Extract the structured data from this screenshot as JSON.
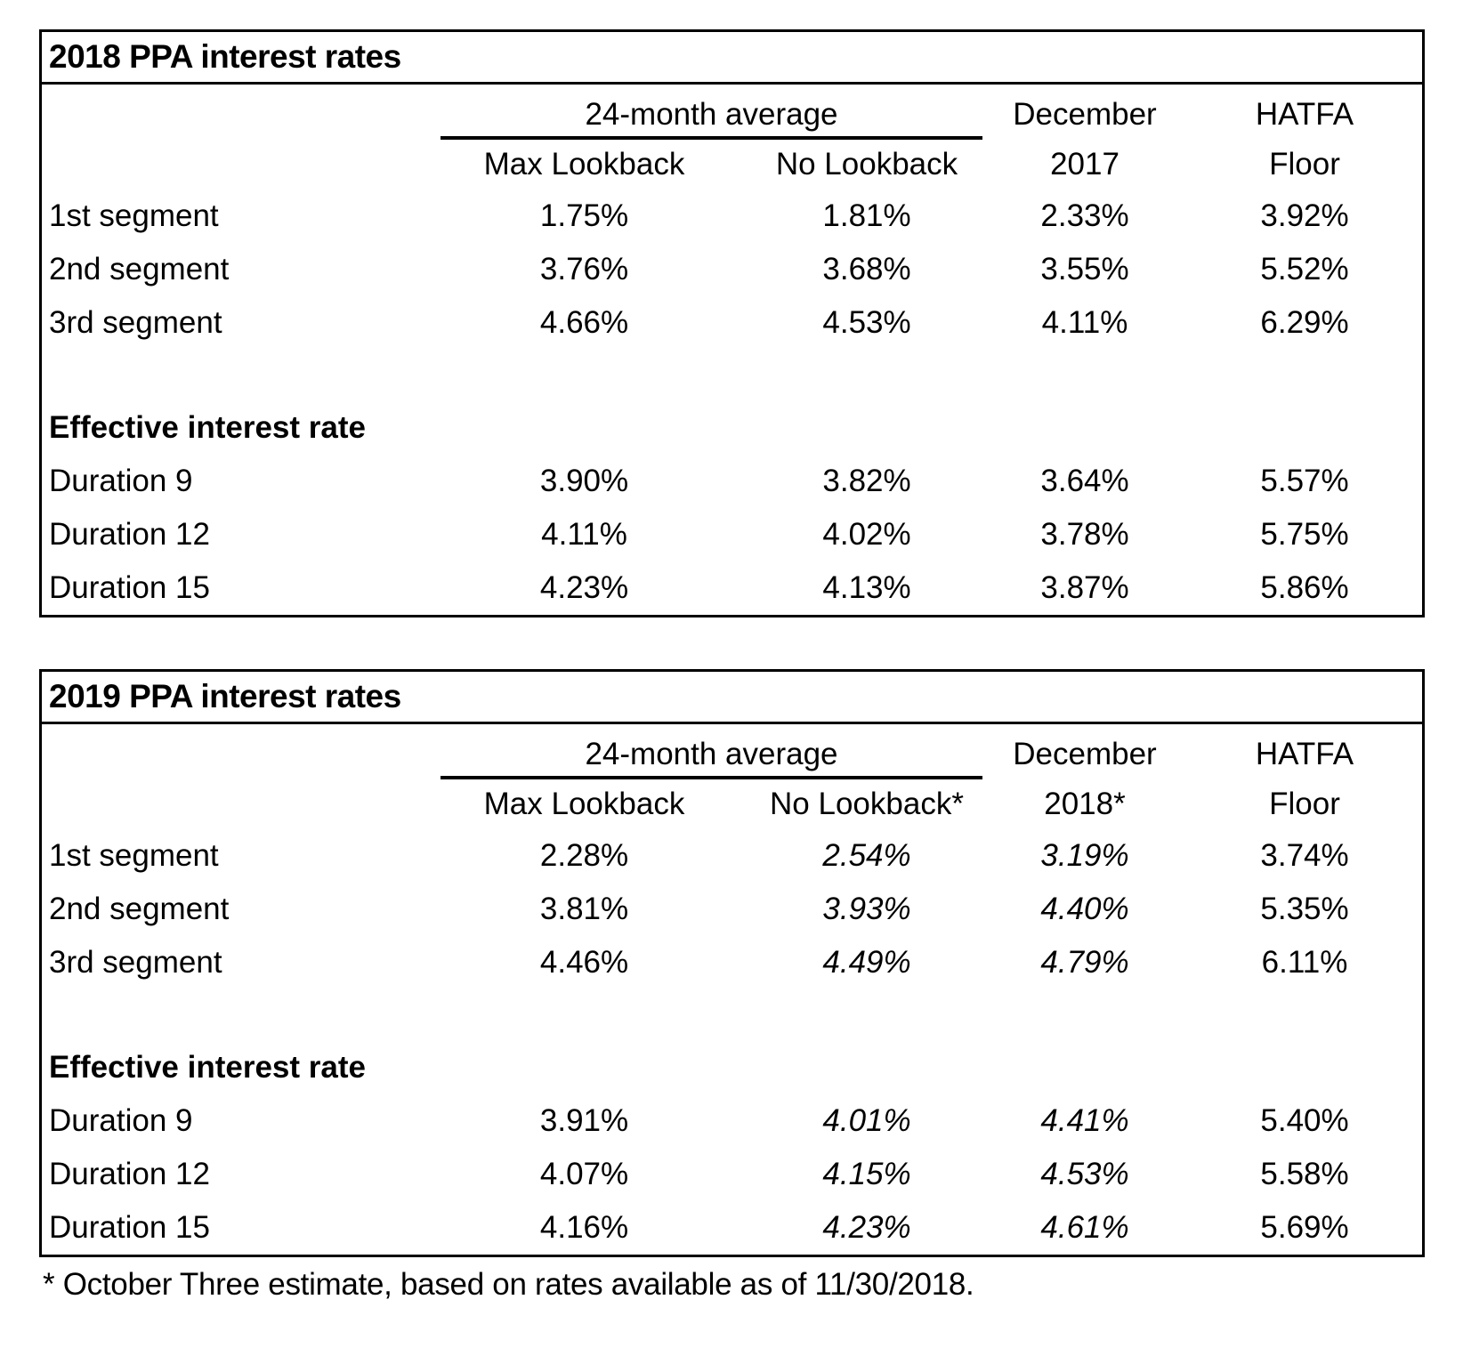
{
  "page": {
    "background_color": "#ffffff",
    "text_color": "#000000",
    "border_color": "#000000"
  },
  "tables": [
    {
      "title": "2018 PPA interest rates",
      "header": {
        "group": "24-month average",
        "col3_line1": "December",
        "col4_line1": "HATFA",
        "sub": [
          "Max Lookback",
          "No Lookback",
          "2017",
          "Floor"
        ]
      },
      "rows": [
        {
          "label": "1st segment",
          "values": [
            "1.75%",
            "1.81%",
            "2.33%",
            "3.92%"
          ]
        },
        {
          "label": "2nd segment",
          "values": [
            "3.76%",
            "3.68%",
            "3.55%",
            "5.52%"
          ]
        },
        {
          "label": "3rd segment",
          "values": [
            "4.66%",
            "4.53%",
            "4.11%",
            "6.29%"
          ]
        },
        {
          "label": "Effective interest rate",
          "values": []
        },
        {
          "label": "Duration 9",
          "values": [
            "3.90%",
            "3.82%",
            "3.64%",
            "5.57%"
          ]
        },
        {
          "label": "Duration 12",
          "values": [
            "4.11%",
            "4.02%",
            "3.78%",
            "5.75%"
          ]
        },
        {
          "label": "Duration 15",
          "values": [
            "4.23%",
            "4.13%",
            "3.87%",
            "5.86%"
          ]
        }
      ]
    },
    {
      "title": "2019 PPA interest rates",
      "header": {
        "group": "24-month average",
        "col3_line1": "December",
        "col4_line1": "HATFA",
        "sub": [
          "Max Lookback",
          "No Lookback*",
          "2018*",
          "Floor"
        ]
      },
      "rows": [
        {
          "label": "1st segment",
          "values": [
            "2.28%",
            "2.54%",
            "3.19%",
            "3.74%"
          ]
        },
        {
          "label": "2nd segment",
          "values": [
            "3.81%",
            "3.93%",
            "4.40%",
            "5.35%"
          ]
        },
        {
          "label": "3rd segment",
          "values": [
            "4.46%",
            "4.49%",
            "4.79%",
            "6.11%"
          ]
        },
        {
          "label": "Effective interest rate",
          "values": []
        },
        {
          "label": "Duration 9",
          "values": [
            "3.91%",
            "4.01%",
            "4.41%",
            "5.40%"
          ]
        },
        {
          "label": "Duration 12",
          "values": [
            "4.07%",
            "4.15%",
            "4.53%",
            "5.58%"
          ]
        },
        {
          "label": "Duration 15",
          "values": [
            "4.16%",
            "4.23%",
            "4.61%",
            "5.69%"
          ]
        }
      ]
    }
  ],
  "footnote": "* October Three estimate, based on rates available as of 11/30/2018."
}
